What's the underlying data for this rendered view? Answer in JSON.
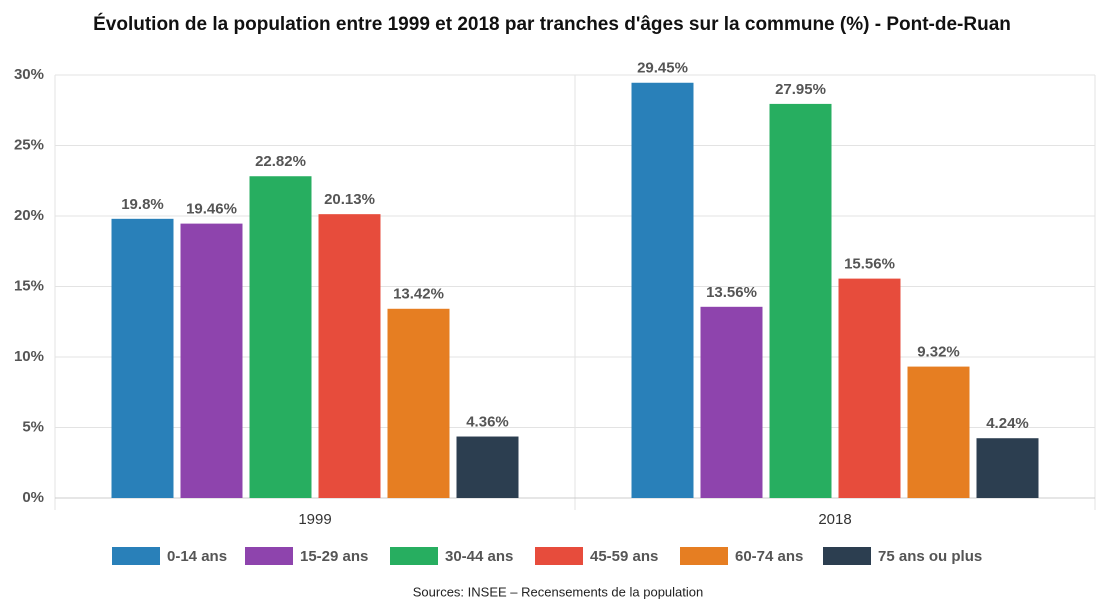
{
  "chart_data": {
    "type": "bar",
    "title": "Évolution de la population entre 1999 et 2018 par tranches d'âges sur la commune (%) - Pont-de-Ruan",
    "categories": [
      "1999",
      "2018"
    ],
    "series": [
      {
        "name": "0-14 ans",
        "color": "#2980b9",
        "values": [
          19.8,
          29.45
        ],
        "value_labels": [
          "19.8%",
          "29.45%"
        ]
      },
      {
        "name": "15-29 ans",
        "color": "#8e44ad",
        "values": [
          19.46,
          13.56
        ],
        "value_labels": [
          "19.46%",
          "13.56%"
        ]
      },
      {
        "name": "30-44 ans",
        "color": "#27ae60",
        "values": [
          22.82,
          27.95
        ],
        "value_labels": [
          "22.82%",
          "27.95%"
        ]
      },
      {
        "name": "45-59 ans",
        "color": "#e74c3c",
        "values": [
          20.13,
          15.56
        ],
        "value_labels": [
          "20.13%",
          "15.56%"
        ]
      },
      {
        "name": "60-74 ans",
        "color": "#e67e22",
        "values": [
          13.42,
          9.32
        ],
        "value_labels": [
          "13.42%",
          "9.32%"
        ]
      },
      {
        "name": "75 ans ou plus",
        "color": "#2c3e50",
        "values": [
          4.36,
          4.24
        ],
        "value_labels": [
          "4.36%",
          "4.24%"
        ]
      }
    ],
    "ylim": [
      0,
      30
    ],
    "yticks": [
      {
        "value": 0,
        "label": "0%"
      },
      {
        "value": 5,
        "label": "5%"
      },
      {
        "value": 10,
        "label": "10%"
      },
      {
        "value": 15,
        "label": "15%"
      },
      {
        "value": 20,
        "label": "20%"
      },
      {
        "value": 25,
        "label": "25%"
      },
      {
        "value": 30,
        "label": "30%"
      }
    ],
    "grid": true,
    "legend": "bottom",
    "source": "Sources: INSEE – Recensements de la population"
  }
}
